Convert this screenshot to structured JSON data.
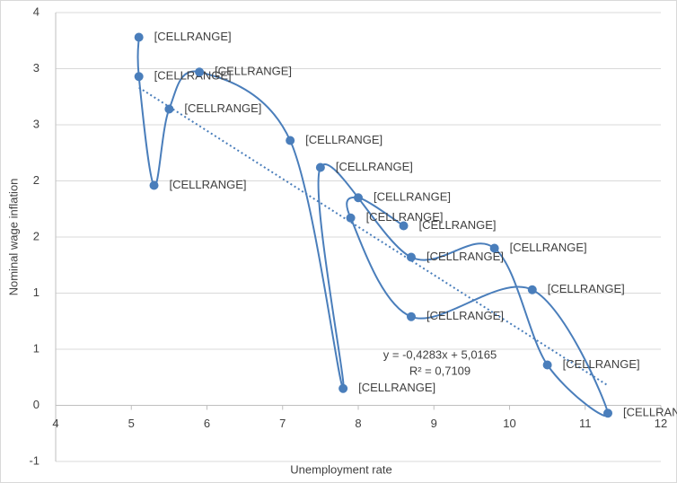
{
  "chart_data": {
    "type": "scatter",
    "x_label": "Unemployment rate",
    "y_label": "Nominal wage inflation",
    "xlim": [
      4,
      12
    ],
    "xticks": [
      4,
      5,
      6,
      7,
      8,
      9,
      10,
      11,
      12
    ],
    "ylim": [
      -0.5,
      3.5
    ],
    "yticks": [
      {
        "value": -0.5,
        "label": "-1"
      },
      0,
      {
        "value": 0.5,
        "label": "1"
      },
      1,
      {
        "value": 1.5,
        "label": "2"
      },
      2,
      {
        "value": 2.5,
        "label": "3"
      },
      3,
      {
        "value": 3.5,
        "label": "4"
      }
    ],
    "grid": true,
    "series": [
      {
        "color": "#4a7ebb",
        "x": [
          5.1,
          5.1,
          5.3,
          5.5,
          5.9,
          7.1,
          7.8,
          7.5,
          8.7,
          9.8,
          10.5,
          11.3,
          10.3,
          8.7,
          7.9,
          8.0,
          8.6
        ],
        "values": [
          3.28,
          2.93,
          1.96,
          2.64,
          2.97,
          2.36,
          0.15,
          2.12,
          1.32,
          1.4,
          0.36,
          -0.07,
          1.03,
          0.79,
          1.67,
          1.85,
          1.6
        ],
        "data_labels": [
          "[CELLRANGE]",
          "[CELLRANGE]",
          "[CELLRANGE]",
          "[CELLRANGE]",
          "[CELLRANGE]",
          "[CELLRANGE]",
          "[CELLRANGE]",
          "[CELLRANGE]",
          "[CELLRANGE]",
          "[CELLRANGE]",
          "[CELLRANGE]",
          "[CELLRANGE]",
          "[CELLRANGE]",
          "[CELLRANGE]",
          "[CELLRANGE]",
          "[CELLRANGE]",
          "[CELLRANGE]"
        ]
      }
    ],
    "trendline": {
      "slope": -0.4283,
      "intercept": 5.0165,
      "equation": "y = -0,4283x + 5,0165",
      "r_squared": "R² = 0,7109"
    }
  }
}
